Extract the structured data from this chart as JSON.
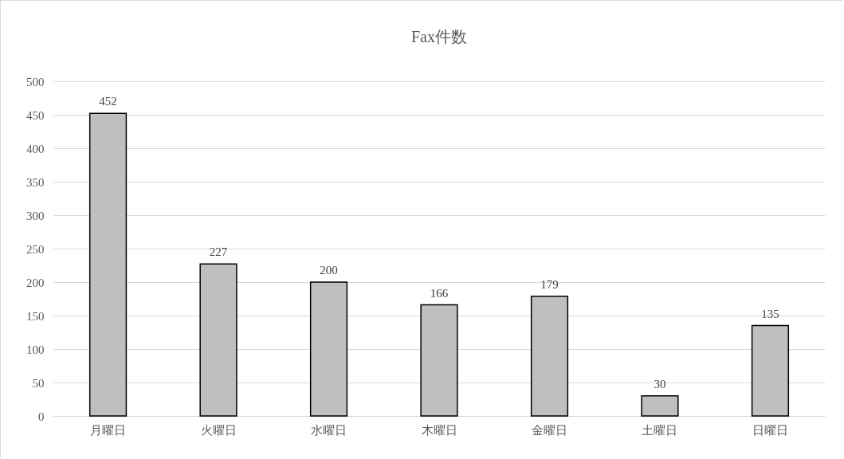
{
  "chart_data": {
    "type": "bar",
    "title": "Fax件数",
    "categories": [
      "月曜日",
      "火曜日",
      "水曜日",
      "木曜日",
      "金曜日",
      "土曜日",
      "日曜日"
    ],
    "values": [
      452,
      227,
      200,
      166,
      179,
      30,
      135
    ],
    "color": "#bfbfbf",
    "ylim": [
      0,
      500
    ],
    "yticks": [
      0,
      50,
      100,
      150,
      200,
      250,
      300,
      350,
      400,
      450,
      500
    ],
    "grid": "y",
    "data_labels": true
  }
}
